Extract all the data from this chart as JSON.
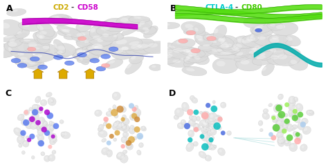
{
  "figure_width": 4.74,
  "figure_height": 2.42,
  "dpi": 100,
  "background_color": "#ffffff",
  "title_A_parts": [
    {
      "text": "CD2",
      "color": "#ccaa00"
    },
    {
      "text": "-",
      "color": "#000000"
    },
    {
      "text": "CD58",
      "color": "#cc00cc"
    }
  ],
  "title_B_parts": [
    {
      "text": "CTLA-4",
      "color": "#00cccc"
    },
    {
      "text": "-",
      "color": "#000000"
    },
    {
      "text": "CD80",
      "color": "#44cc00"
    }
  ],
  "surf_color": "#e0e0e0",
  "surf_edge": "#bbbbbb",
  "panel_labels": [
    "A",
    "B",
    "C",
    "D"
  ],
  "label_fontsize": 9,
  "title_fontsize": 7.5
}
